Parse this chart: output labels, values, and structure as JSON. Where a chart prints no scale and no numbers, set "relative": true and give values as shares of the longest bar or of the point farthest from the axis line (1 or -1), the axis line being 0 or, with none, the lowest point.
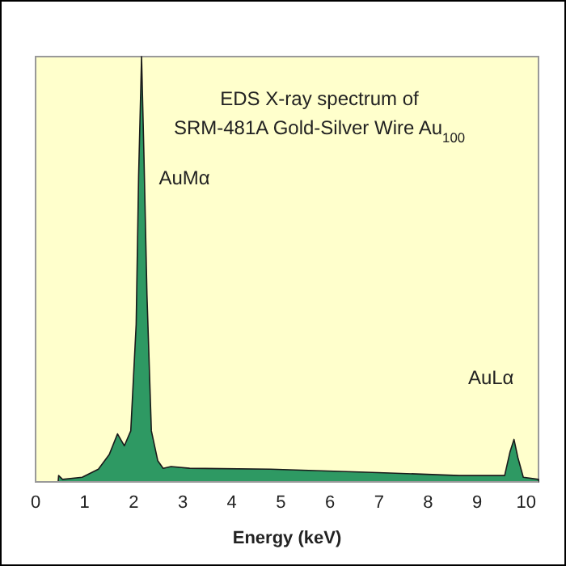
{
  "chart_data": {
    "type": "area",
    "title": "EDS X-ray spectrum of",
    "subtitle": "SRM-481A Gold-Silver Wire Au$_{100}$",
    "xlabel": "Energy (keV)",
    "relative": true,
    "xlim": [
      0,
      10.25
    ],
    "xticks": [
      0,
      1,
      2,
      3,
      4,
      5,
      6,
      7,
      8,
      9,
      10
    ],
    "grid": false,
    "series": [
      {
        "color": "#2e9963",
        "x": [
          0.46,
          0.47,
          0.55,
          0.95,
          1.28,
          1.5,
          1.67,
          1.81,
          1.94,
          2.05,
          2.1,
          2.16,
          2.21,
          2.27,
          2.36,
          2.49,
          2.6,
          2.76,
          3.14,
          4.79,
          6.98,
          8.63,
          9.56,
          9.67,
          9.75,
          9.83,
          9.94,
          10.25
        ],
        "values": [
          0,
          0.015,
          0.006,
          0.011,
          0.03,
          0.064,
          0.113,
          0.085,
          0.12,
          0.37,
          0.72,
          1,
          0.76,
          0.44,
          0.12,
          0.05,
          0.032,
          0.036,
          0.032,
          0.03,
          0.022,
          0.015,
          0.015,
          0.071,
          0.1,
          0.057,
          0.011,
          0.006
        ]
      }
    ],
    "annotations": [
      "AuMα",
      "AuLα"
    ]
  }
}
